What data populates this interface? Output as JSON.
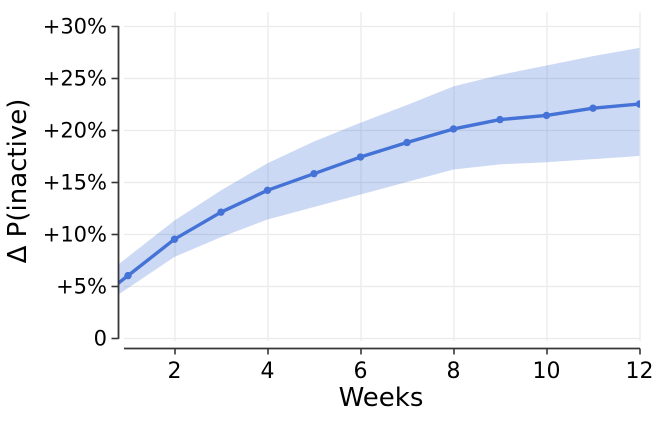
{
  "chart_data": {
    "type": "line",
    "title": "",
    "xlabel": "Weeks",
    "ylabel": "Δ P(inactive)",
    "x": [
      1,
      2,
      3,
      4,
      5,
      6,
      7,
      8,
      9,
      10,
      11,
      12
    ],
    "series": [
      {
        "name": "delta-p-inactive",
        "role": "line",
        "values": [
          6.0,
          9.5,
          12.1,
          14.2,
          15.8,
          17.4,
          18.8,
          20.1,
          21.0,
          21.4,
          22.1,
          22.5
        ]
      },
      {
        "name": "ci-lower",
        "role": "band-lower",
        "values": [
          4.8,
          7.8,
          9.7,
          11.4,
          12.6,
          13.8,
          15.0,
          16.2,
          16.7,
          16.9,
          17.2,
          17.5
        ]
      },
      {
        "name": "ci-upper",
        "role": "band-upper",
        "values": [
          7.8,
          11.3,
          14.2,
          16.8,
          18.9,
          20.7,
          22.4,
          24.2,
          25.3,
          26.2,
          27.1,
          27.9
        ]
      }
    ],
    "xticks": {
      "values": [
        2,
        4,
        6,
        8,
        10,
        12
      ],
      "labels": [
        "2",
        "4",
        "6",
        "8",
        "10",
        "12"
      ]
    },
    "yticks": {
      "values": [
        0,
        5,
        10,
        15,
        20,
        25,
        30
      ],
      "labels": [
        "0",
        "+5%",
        "+10%",
        "+15%",
        "+20%",
        "+25%",
        "+30%"
      ]
    },
    "xlim": [
      0.78,
      12.02
    ],
    "ylim": [
      0,
      30
    ],
    "grid": true,
    "legend": false,
    "colors": {
      "line": "#4472d6",
      "band": "#4472d6",
      "band_opacity": "0.27",
      "grid": "#eaeaea",
      "axis": "#363636",
      "text": "#000000"
    }
  }
}
